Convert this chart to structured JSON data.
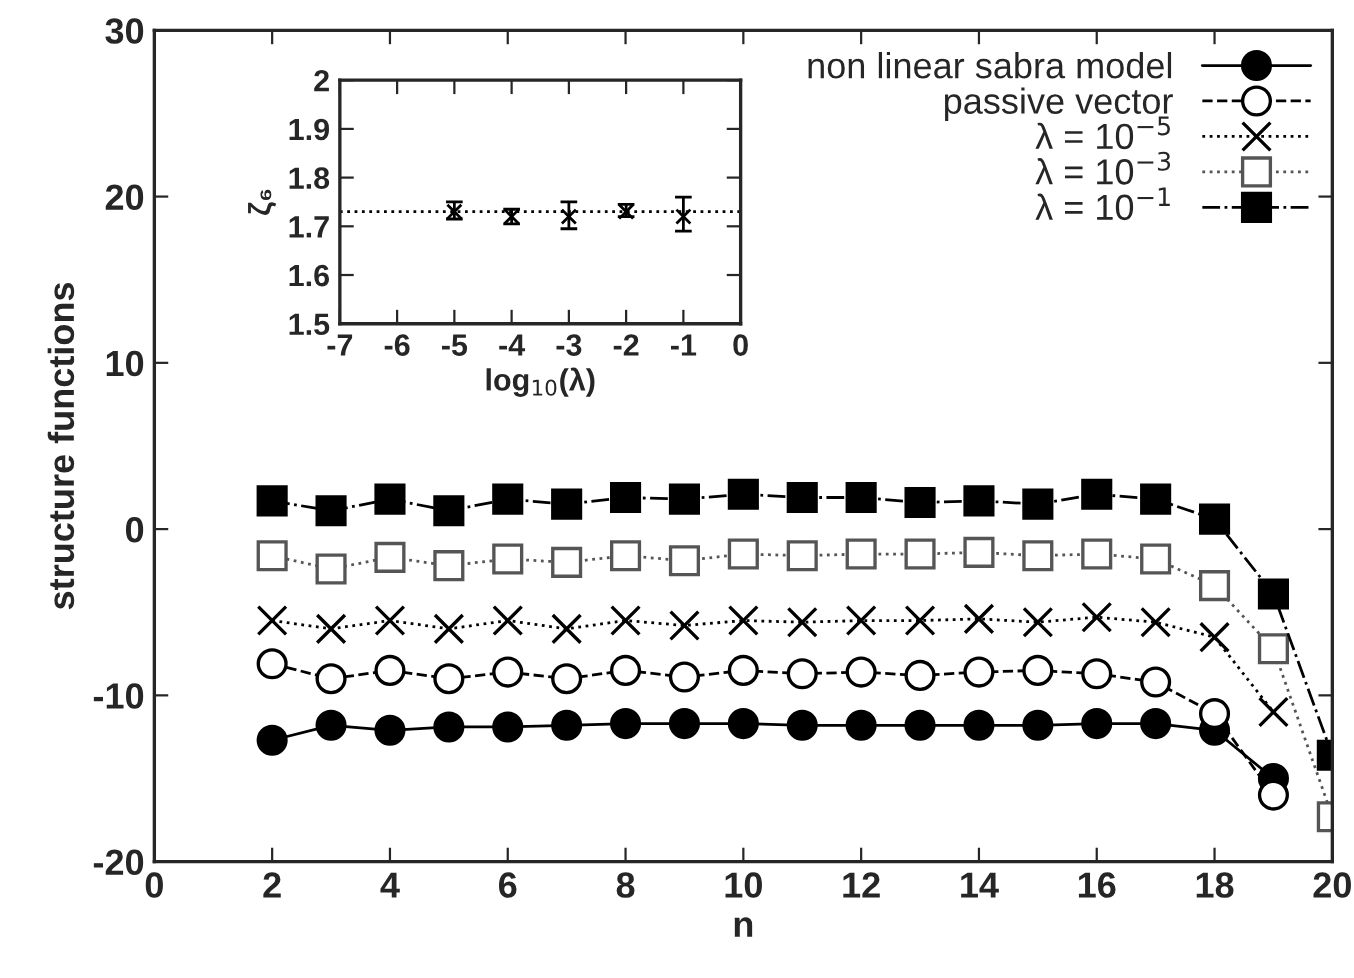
{
  "chart_data": [
    {
      "type": "line",
      "xlabel": "n",
      "ylabel": "structure functions",
      "x": [
        2,
        3,
        4,
        5,
        6,
        7,
        8,
        9,
        10,
        11,
        12,
        13,
        14,
        15,
        16,
        17,
        18,
        19,
        20
      ],
      "xlim": [
        0,
        20
      ],
      "xticks": [
        0,
        2,
        4,
        6,
        8,
        10,
        12,
        14,
        16,
        18,
        20
      ],
      "ylim": [
        -20,
        30
      ],
      "yticks": [
        -20,
        -10,
        0,
        10,
        20,
        30
      ],
      "legend": "top right",
      "grid": false,
      "series": [
        {
          "name": "non linear sabra model",
          "color": "#000000",
          "marker": "circle",
          "line_style": "solid",
          "values": [
            -12.7,
            -11.8,
            -12.1,
            -11.9,
            -11.9,
            -11.8,
            -11.7,
            -11.7,
            -11.7,
            -11.8,
            -11.8,
            -11.8,
            -11.8,
            -11.8,
            -11.7,
            -11.7,
            -12.1,
            -15,
            null
          ]
        },
        {
          "name": "passive vector",
          "color": "#000000",
          "marker": "circle-open",
          "line_style": "dashed",
          "values": [
            -8.1,
            -9,
            -8.5,
            -9,
            -8.6,
            -9,
            -8.5,
            -8.9,
            -8.5,
            -8.7,
            -8.6,
            -8.8,
            -8.6,
            -8.5,
            -8.7,
            -9.2,
            -11.1,
            -16,
            null
          ]
        },
        {
          "name": "λ = 10$^{−5}$",
          "color": "#000000",
          "marker": "cross",
          "line_style": "dotted",
          "values": [
            -5.5,
            -6,
            -5.5,
            -6,
            -5.5,
            -6,
            -5.5,
            -5.8,
            -5.5,
            -5.6,
            -5.5,
            -5.5,
            -5.4,
            -5.6,
            -5.3,
            -5.6,
            -6.5,
            -11,
            null
          ]
        },
        {
          "name": "λ = 10$^{−3}$",
          "color": "#555555",
          "marker": "square-open",
          "line_style": "dotted",
          "values": [
            -1.6,
            -2.4,
            -1.7,
            -2.2,
            -1.8,
            -2,
            -1.6,
            -1.9,
            -1.5,
            -1.6,
            -1.5,
            -1.5,
            -1.4,
            -1.6,
            -1.5,
            -1.8,
            -3.4,
            -7.2,
            -17.3
          ]
        },
        {
          "name": "λ = 10$^{−1}$",
          "color": "#000000",
          "marker": "square",
          "line_style": "dashdot",
          "values": [
            1.7,
            1.1,
            1.8,
            1.1,
            1.8,
            1.5,
            1.9,
            1.8,
            2.1,
            1.9,
            1.9,
            1.6,
            1.7,
            1.5,
            2.1,
            1.8,
            0.6,
            -3.9,
            -13.6
          ]
        }
      ]
    },
    {
      "type": "scatter",
      "xlabel": "log$_{10}$(λ)",
      "ylabel": "ζ₆",
      "x": [
        -5,
        -4,
        -3,
        -2,
        -1
      ],
      "values": [
        1.73,
        1.72,
        1.72,
        1.73,
        1.72
      ],
      "errors": [
        [
          1.715,
          1.75
        ],
        [
          1.705,
          1.735
        ],
        [
          1.695,
          1.75
        ],
        [
          1.72,
          1.745
        ],
        [
          1.69,
          1.76
        ]
      ],
      "color": "#000000",
      "marker": "cross",
      "xlim": [
        -7,
        0
      ],
      "xticks": [
        -7,
        -6,
        -5,
        -4,
        -3,
        -2,
        -1,
        0
      ],
      "ylim": [
        1.5,
        2
      ],
      "yticks": [
        {
          "value": 1.5,
          "label": "1.5"
        },
        {
          "value": 1.6,
          "label": "1.6"
        },
        {
          "value": 1.7,
          "label": "1.7"
        },
        {
          "value": 1.8,
          "label": "1.8"
        },
        {
          "value": 1.9,
          "label": "1.9"
        },
        {
          "value": 2,
          "label": "2"
        }
      ],
      "ref_lines": [
        {
          "axis": "y",
          "value": 1.73,
          "line_style": "dotted"
        }
      ]
    }
  ]
}
